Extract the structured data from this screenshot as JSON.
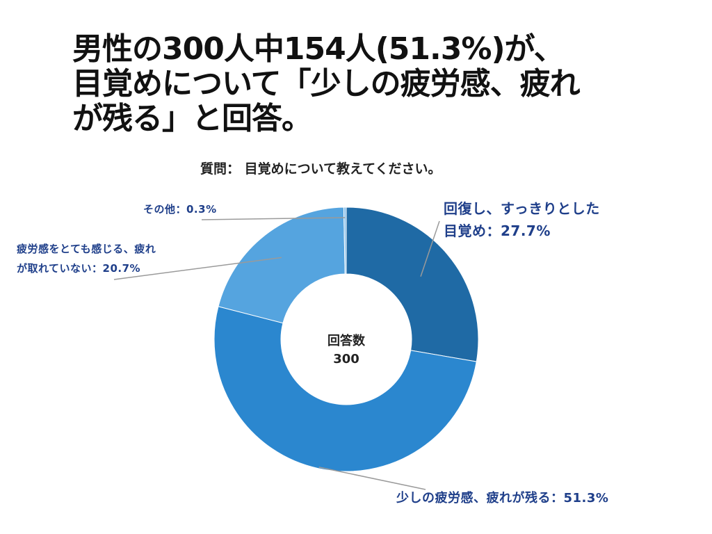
{
  "title": {
    "lines": [
      "男性の300人中154人(51.3%)が、",
      "目覚めについて「少しの疲労感、疲れ",
      "が残る」と回答。"
    ]
  },
  "question": "質問： 目覚めについて教えてください。",
  "chart_data": {
    "type": "pie",
    "donut": true,
    "center_label": {
      "title": "回答数",
      "value": "300"
    },
    "slices": [
      {
        "label_lines": [
          "回復し、すっきりとした",
          "目覚め：27.7%"
        ],
        "value": 27.7,
        "color": "#1f6aa5"
      },
      {
        "label_lines": [
          "少しの疲労感、疲れが残る：51.3%"
        ],
        "value": 51.3,
        "color": "#2b87cf"
      },
      {
        "label_lines": [
          "疲労感をとても感じる、疲れ",
          "が取れていない：20.7%"
        ],
        "value": 20.7,
        "color": "#55a4df"
      },
      {
        "label_lines": [
          "その他：0.3%"
        ],
        "value": 0.3,
        "color": "#8fc3ea"
      }
    ],
    "legend": "none"
  }
}
